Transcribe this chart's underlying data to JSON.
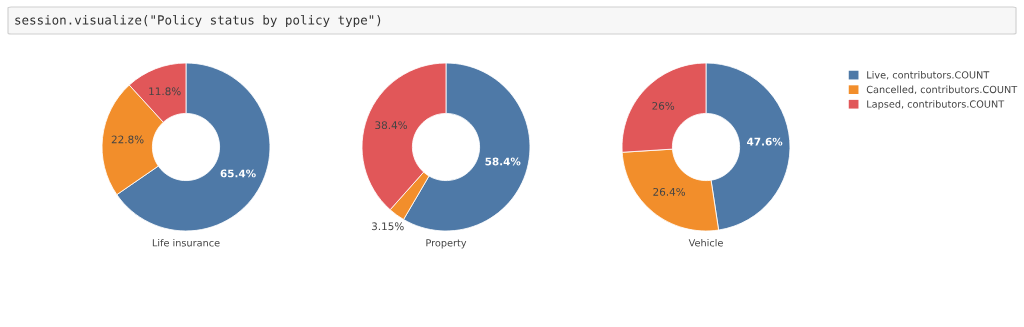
{
  "chart_data": {
    "type": "donut",
    "legend": "right",
    "annotations": [
      "session.visualize(\"Policy status by policy type\")"
    ],
    "categories": [
      "Live, contributors.COUNT",
      "Cancelled, contributors.COUNT",
      "Lapsed, contributors.COUNT"
    ],
    "colors": [
      "#4e79a7",
      "#f28e2b",
      "#e15759"
    ],
    "series": [
      {
        "name": "Life insurance",
        "values": [
          65.4,
          22.8,
          11.8
        ],
        "value_labels": [
          "65.4%",
          "22.8%",
          "11.8%"
        ]
      },
      {
        "name": "Property",
        "values": [
          58.4,
          3.15,
          38.4
        ],
        "value_labels": [
          "58.4%",
          "3.15%",
          "38.4%"
        ]
      },
      {
        "name": "Vehicle",
        "values": [
          47.6,
          26.4,
          26
        ],
        "value_labels": [
          "47.6%",
          "26.4%",
          "26%"
        ]
      }
    ]
  }
}
